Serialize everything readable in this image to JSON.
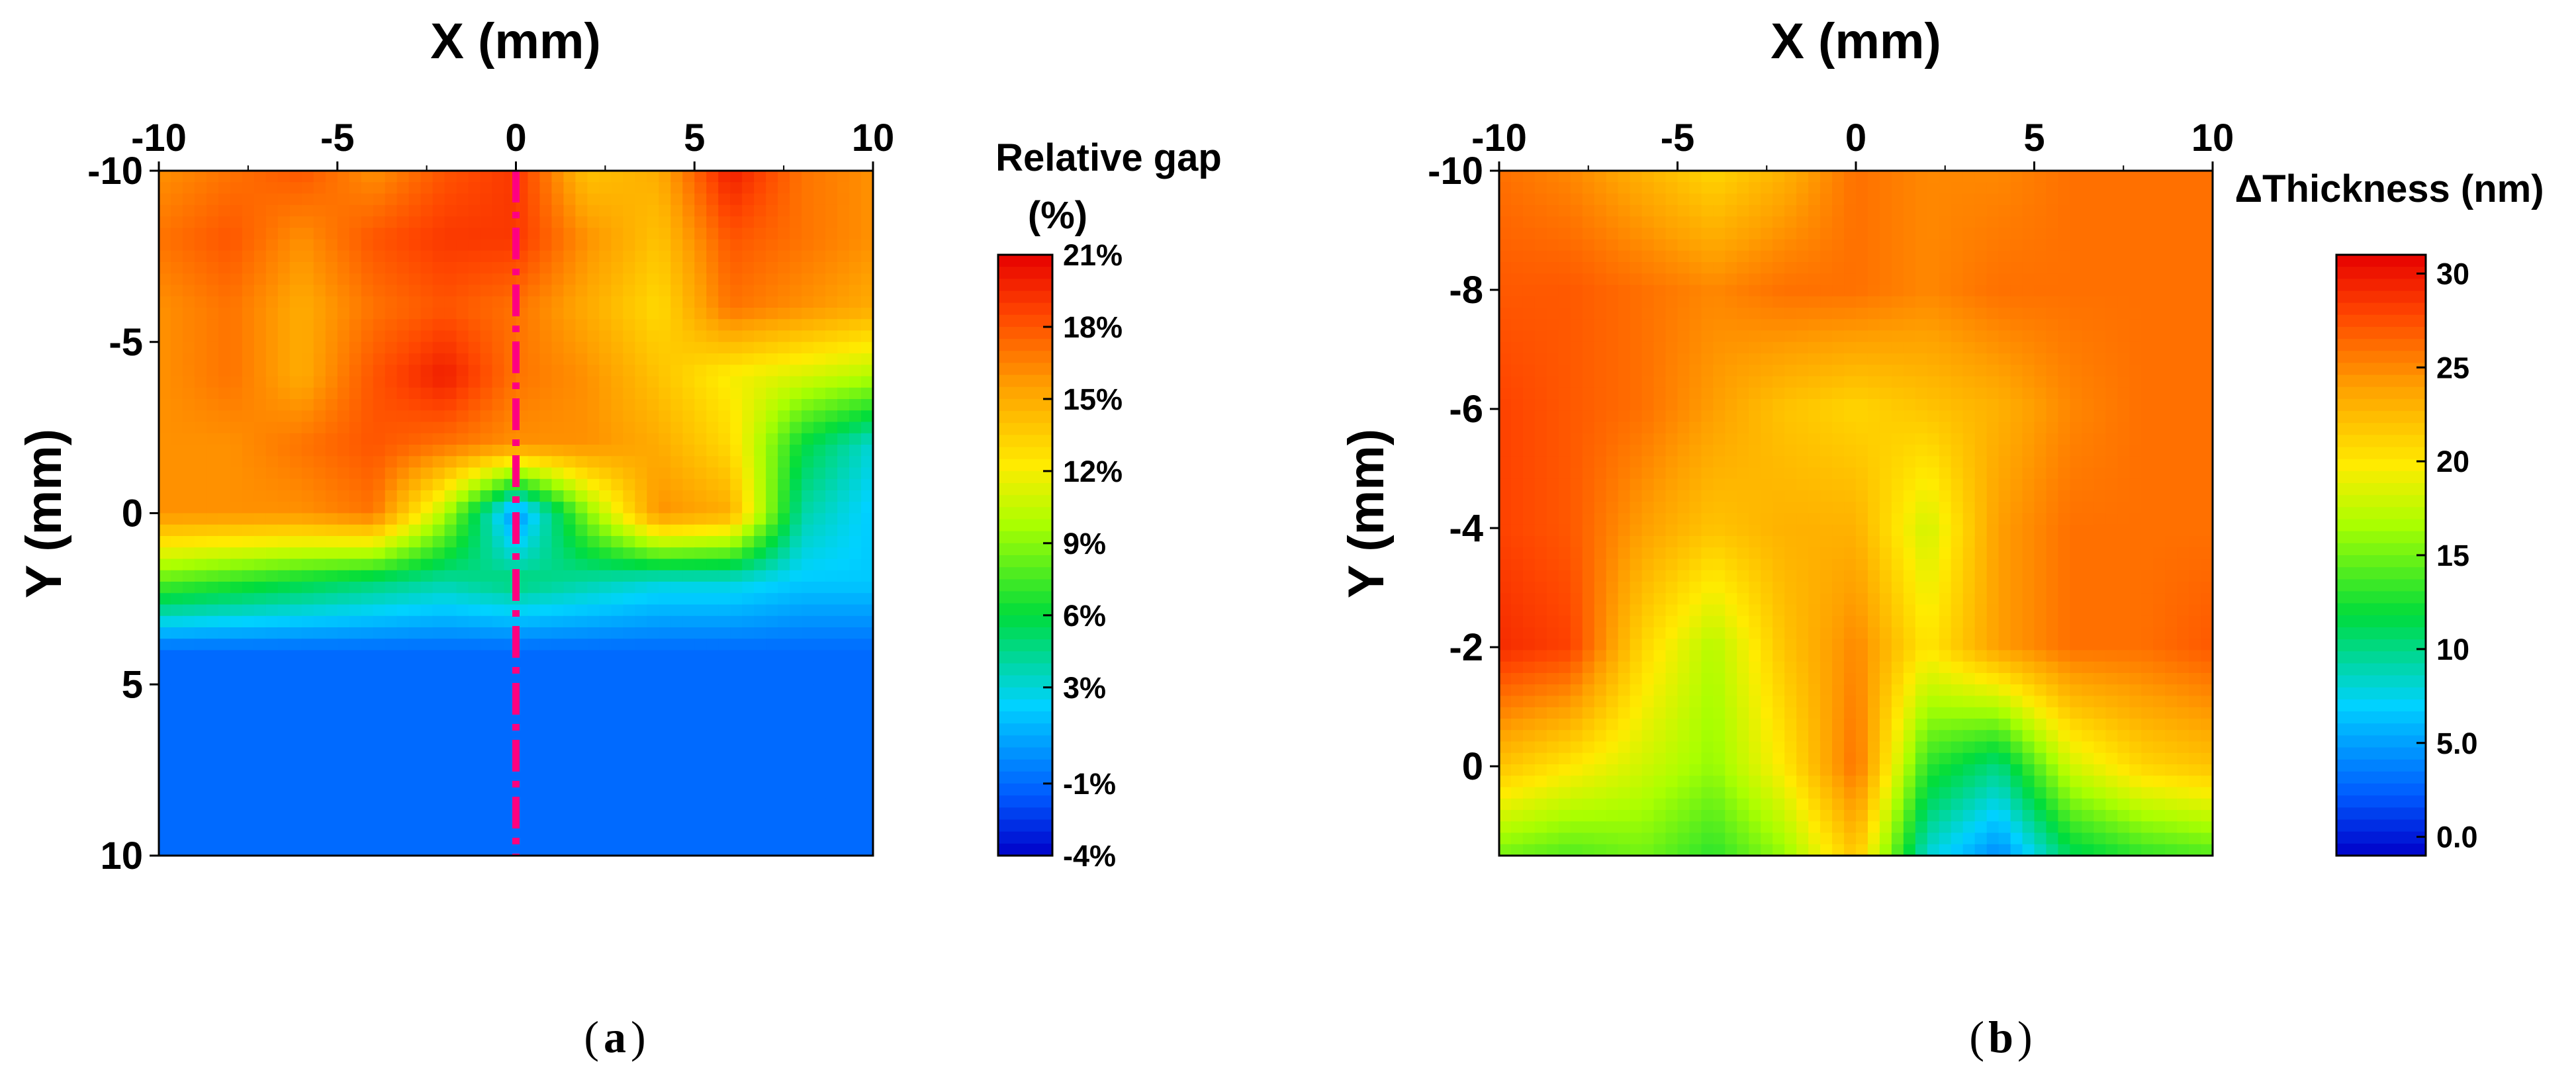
{
  "chart_data": [
    {
      "type": "heatmap",
      "panel_label": "a",
      "xlabel": "X (mm)",
      "ylabel": "Y (mm)",
      "xlim": [
        -10,
        10
      ],
      "ylim": [
        -10,
        10
      ],
      "x_ticks": [
        -10,
        -5,
        0,
        5,
        10
      ],
      "x_tick_labels": [
        "-10",
        "-5",
        "0",
        "5",
        "10"
      ],
      "y_ticks": [
        -10,
        -5,
        0,
        5,
        10
      ],
      "y_tick_labels": [
        "-10",
        "-5",
        "0",
        "5",
        "10"
      ],
      "colorbar": {
        "title_line1": "Relative gap",
        "title_line2": "(%)",
        "min": -4,
        "max": 21,
        "tick_values": [
          21,
          18,
          15,
          12,
          9,
          6,
          3,
          -1,
          -4
        ],
        "tick_labels": [
          "21%",
          "18%",
          "15%",
          "12%",
          "9%",
          "6%",
          "3%",
          "-1%",
          "-4%"
        ]
      },
      "reference_line": {
        "x": 0,
        "color": "#ff0080",
        "style": "dash-dot"
      },
      "x": [
        -10,
        -8,
        -6,
        -4,
        -2,
        0,
        2,
        4,
        6,
        8,
        10
      ],
      "y": [
        -10,
        -8,
        -6,
        -4,
        -2,
        0,
        2,
        4,
        6,
        8,
        10
      ],
      "z": [
        [
          16,
          17,
          18,
          16,
          18,
          19,
          14,
          15,
          20,
          17,
          16
        ],
        [
          17,
          18,
          16,
          18,
          19,
          19,
          16,
          14,
          18,
          17,
          16
        ],
        [
          16,
          17,
          15,
          17,
          18,
          17,
          15,
          13,
          17,
          16,
          15
        ],
        [
          16,
          17,
          15,
          18,
          20,
          17,
          16,
          14,
          12,
          11,
          10
        ],
        [
          16,
          16,
          17,
          18,
          17,
          16,
          16,
          15,
          13,
          6,
          3
        ],
        [
          16,
          16,
          16,
          17,
          10,
          0,
          9,
          16,
          15,
          4,
          2
        ],
        [
          8,
          7,
          6,
          5,
          4,
          5,
          4,
          3,
          3,
          2,
          2
        ],
        [
          -1,
          -1,
          -1,
          -1,
          -1,
          -1,
          -1,
          -1,
          -1,
          -1,
          -1
        ],
        [
          -1,
          -1,
          -1,
          -1,
          -1,
          -1,
          -1,
          -1,
          -1,
          -1,
          -1
        ],
        [
          -1,
          -1,
          -1,
          -1,
          -1,
          -1,
          -1,
          -1,
          -1,
          -1,
          -1
        ],
        [
          -1,
          -1,
          -1,
          -1,
          -1,
          -1,
          -1,
          -1,
          -1,
          -1,
          -1
        ]
      ]
    },
    {
      "type": "heatmap",
      "panel_label": "b",
      "xlabel": "X (mm)",
      "ylabel": "Y (mm)",
      "xlim": [
        -10,
        10
      ],
      "ylim": [
        -10,
        1.5
      ],
      "x_ticks": [
        -10,
        -5,
        0,
        5,
        10
      ],
      "x_tick_labels": [
        "-10",
        "-5",
        "0",
        "5",
        "10"
      ],
      "y_ticks": [
        -10,
        -8,
        -6,
        -4,
        -2,
        0
      ],
      "y_tick_labels": [
        "-10",
        "-8",
        "-6",
        "-4",
        "-2",
        "0"
      ],
      "colorbar": {
        "title": "ΔThickness (nm)",
        "min": -1,
        "max": 31,
        "tick_values": [
          30,
          25,
          20,
          15,
          10,
          5,
          0
        ],
        "tick_labels": [
          "30",
          "25",
          "20",
          "15",
          "10",
          "5.0",
          "0.0"
        ]
      },
      "x": [
        -10,
        -8,
        -6,
        -4,
        -2,
        0,
        2,
        4,
        6,
        8,
        10
      ],
      "y": [
        -10,
        -8,
        -6,
        -4,
        -2,
        0,
        1.5
      ],
      "z": [
        [
          26,
          25,
          23,
          21,
          23,
          26,
          25,
          25,
          26,
          26,
          26
        ],
        [
          27,
          27,
          26,
          25,
          26,
          26,
          25,
          26,
          26,
          26,
          26
        ],
        [
          28,
          27,
          26,
          24,
          22,
          21,
          22,
          23,
          25,
          26,
          26
        ],
        [
          28,
          27,
          24,
          22,
          23,
          23,
          18,
          24,
          26,
          26,
          26
        ],
        [
          29,
          28,
          21,
          17,
          22,
          25,
          20,
          24,
          26,
          26,
          27
        ],
        [
          22,
          20,
          18,
          16,
          20,
          26,
          13,
          10,
          18,
          21,
          22
        ],
        [
          15,
          14,
          15,
          13,
          16,
          22,
          8,
          4,
          11,
          13,
          14
        ]
      ]
    }
  ],
  "captions": {
    "a": "a",
    "b": "b"
  }
}
